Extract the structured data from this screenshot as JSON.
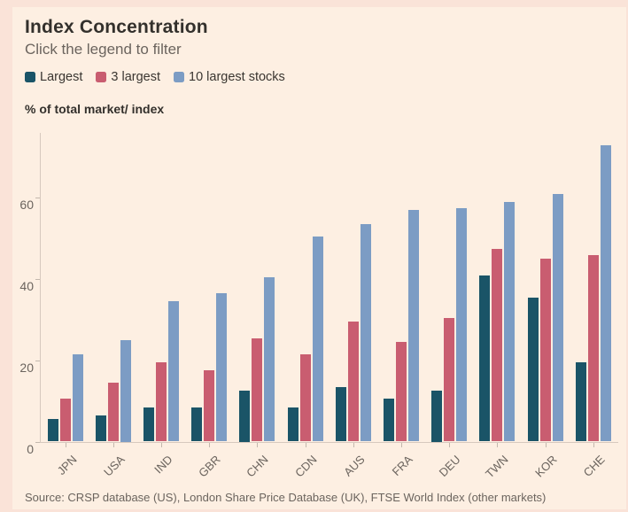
{
  "header": {
    "title": "Index Concentration",
    "subtitle": "Click the legend to filter"
  },
  "unit_label": "% of total market/ index",
  "source": "Source: CRSP database (US), London Share Price Database (UK), FTSE World Index (other markets)",
  "colors": {
    "page_background": "#fae3d8",
    "panel_background": "#fdefe2",
    "series_largest": "#1a5467",
    "series_3_largest": "#c95d70",
    "series_10_largest": "#7c9cc4",
    "axis": "#d7c9be",
    "text_dark": "#33302c",
    "text_muted": "#6b645e"
  },
  "chart_data": {
    "type": "bar",
    "title": "Index Concentration",
    "subtitle": "Click the legend to filter",
    "ylabel": "% of total market/ index",
    "categories": [
      "JPN",
      "USA",
      "IND",
      "GBR",
      "CHN",
      "CDN",
      "AUS",
      "FRA",
      "DEU",
      "TWN",
      "KOR",
      "CHE"
    ],
    "series": [
      {
        "name": "Largest",
        "color": "#1a5467",
        "values": [
          5.5,
          6.5,
          8.5,
          8.5,
          12.5,
          8.5,
          13.5,
          10.5,
          12.5,
          41,
          35.5,
          19.5
        ]
      },
      {
        "name": "3 largest",
        "color": "#c95d70",
        "values": [
          10.5,
          14.5,
          19.5,
          17.5,
          25.5,
          21.5,
          29.5,
          24.5,
          30.5,
          47.5,
          45,
          46
        ]
      },
      {
        "name": "10 largest stocks",
        "color": "#7c9cc4",
        "values": [
          21.5,
          25,
          34.5,
          36.5,
          40.5,
          50.5,
          53.5,
          57,
          57.5,
          59,
          61,
          73
        ]
      }
    ],
    "yticks": [
      0,
      20,
      40,
      60
    ],
    "ylim": [
      0,
      76
    ],
    "grid": false,
    "legend_position": "top"
  }
}
